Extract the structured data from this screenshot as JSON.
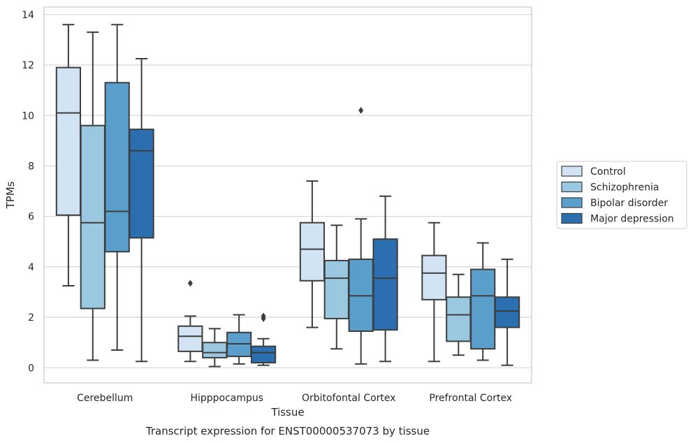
{
  "caption": "Transcript expression for ENST00000537073 by tissue",
  "chart_data": {
    "type": "box",
    "xlabel": "Tissue",
    "ylabel": "TPMs",
    "ylim": [
      -0.6,
      14.3
    ],
    "yticks": [
      0,
      2,
      4,
      6,
      8,
      10,
      12,
      14
    ],
    "grid": "horizontal",
    "legend_position": "right",
    "categories": [
      "Cerebellum",
      "Hipppocampus",
      "Orbitofontal Cortex",
      "Prefrontal Cortex"
    ],
    "series": [
      {
        "name": "Control",
        "color": "#d2e3f3",
        "boxes": [
          {
            "whisker_low": 3.25,
            "q1": 6.05,
            "median": 10.1,
            "q3": 11.9,
            "whisker_high": 13.6,
            "outliers": []
          },
          {
            "whisker_low": 0.25,
            "q1": 0.65,
            "median": 1.25,
            "q3": 1.65,
            "whisker_high": 2.05,
            "outliers": [
              3.35
            ]
          },
          {
            "whisker_low": 1.6,
            "q1": 3.45,
            "median": 4.7,
            "q3": 5.75,
            "whisker_high": 7.4,
            "outliers": []
          },
          {
            "whisker_low": 0.25,
            "q1": 2.7,
            "median": 3.75,
            "q3": 4.45,
            "whisker_high": 5.75,
            "outliers": []
          }
        ]
      },
      {
        "name": "Schizophrenia",
        "color": "#9ac8e0",
        "boxes": [
          {
            "whisker_low": 0.3,
            "q1": 2.35,
            "median": 5.75,
            "q3": 9.6,
            "whisker_high": 13.3,
            "outliers": []
          },
          {
            "whisker_low": 0.05,
            "q1": 0.4,
            "median": 0.6,
            "q3": 1.0,
            "whisker_high": 1.55,
            "outliers": []
          },
          {
            "whisker_low": 0.75,
            "q1": 1.95,
            "median": 3.55,
            "q3": 4.25,
            "whisker_high": 5.65,
            "outliers": []
          },
          {
            "whisker_low": 0.5,
            "q1": 1.05,
            "median": 2.1,
            "q3": 2.8,
            "whisker_high": 3.7,
            "outliers": []
          }
        ]
      },
      {
        "name": "Bipolar disorder",
        "color": "#5a9ecb",
        "boxes": [
          {
            "whisker_low": 0.7,
            "q1": 4.6,
            "median": 6.2,
            "q3": 11.3,
            "whisker_high": 13.6,
            "outliers": []
          },
          {
            "whisker_low": 0.15,
            "q1": 0.45,
            "median": 0.95,
            "q3": 1.4,
            "whisker_high": 2.1,
            "outliers": []
          },
          {
            "whisker_low": 0.15,
            "q1": 1.45,
            "median": 2.85,
            "q3": 4.3,
            "whisker_high": 5.9,
            "outliers": [
              10.2
            ]
          },
          {
            "whisker_low": 0.3,
            "q1": 0.75,
            "median": 2.85,
            "q3": 3.9,
            "whisker_high": 4.95,
            "outliers": []
          }
        ]
      },
      {
        "name": "Major depression",
        "color": "#2c6fb0",
        "boxes": [
          {
            "whisker_low": 0.25,
            "q1": 5.15,
            "median": 8.6,
            "q3": 9.45,
            "whisker_high": 12.25,
            "outliers": []
          },
          {
            "whisker_low": 0.1,
            "q1": 0.2,
            "median": 0.6,
            "q3": 0.85,
            "whisker_high": 1.15,
            "outliers": [
              1.95,
              2.05
            ]
          },
          {
            "whisker_low": 0.25,
            "q1": 1.5,
            "median": 3.55,
            "q3": 5.1,
            "whisker_high": 6.8,
            "outliers": []
          },
          {
            "whisker_low": 0.1,
            "q1": 1.6,
            "median": 2.25,
            "q3": 2.8,
            "whisker_high": 4.3,
            "outliers": []
          }
        ]
      }
    ]
  }
}
